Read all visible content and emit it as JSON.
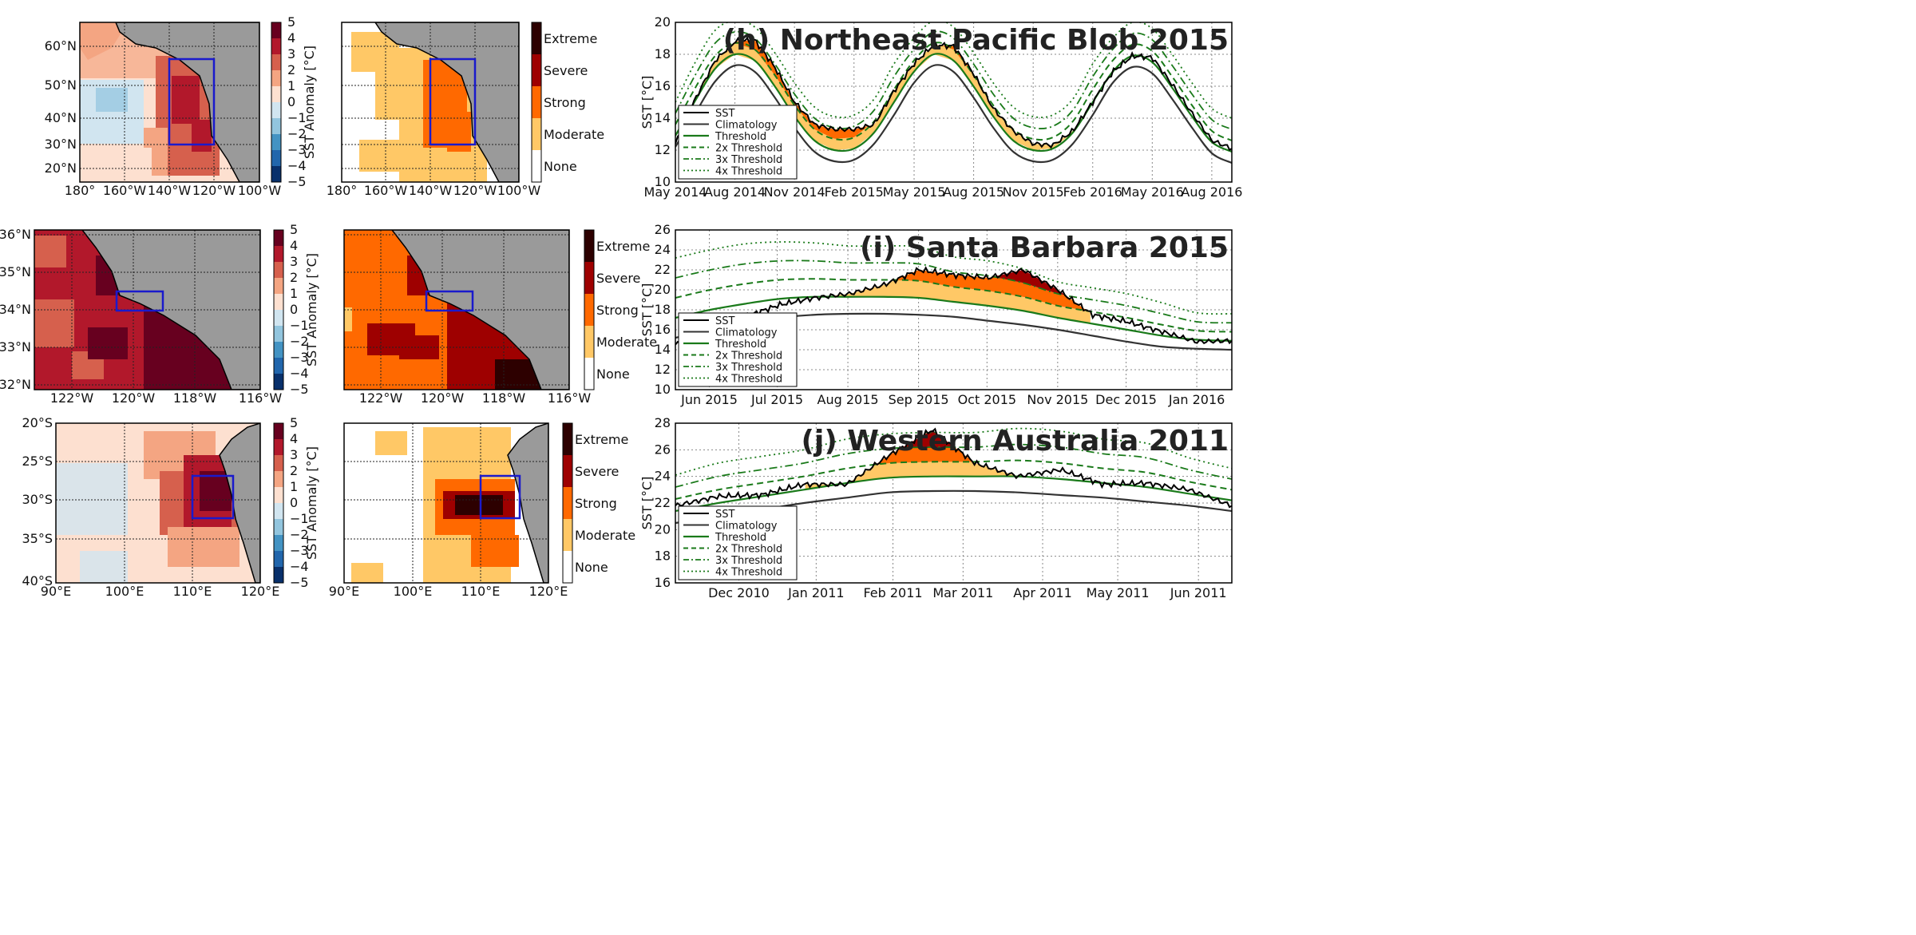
{
  "colors": {
    "land": "#9a9a9a",
    "box": "#1a1acc",
    "anomaly_scale": [
      "#08306b",
      "#2166ac",
      "#4393c3",
      "#92c5de",
      "#d1e5f0",
      "#fde0d0",
      "#f4a582",
      "#d6604d",
      "#b2182b",
      "#67001f"
    ],
    "category_scale": [
      "#ffffff",
      "#ffc866",
      "#ff6900",
      "#9e0000",
      "#2d0000"
    ],
    "climatology": "#333333",
    "sst": "#000000",
    "threshold": "#1a7a1a"
  },
  "maps": [
    {
      "region": "Northeast Pacific",
      "lat_ticks": [
        "60°N",
        "50°N",
        "40°N",
        "30°N",
        "20°N"
      ],
      "lon_ticks": [
        "180°",
        "160°W",
        "140°W",
        "120°W",
        "100°W"
      ],
      "colorbar_anomaly": {
        "label": "SST Anomaly [°C]",
        "ticks": [
          "5",
          "4",
          "3",
          "2",
          "1",
          "0",
          "−1",
          "−2",
          "−3",
          "−4",
          "−5"
        ]
      },
      "colorbar_category": {
        "labels": [
          "Extreme",
          "Severe",
          "Strong",
          "Moderate",
          "None"
        ]
      }
    },
    {
      "region": "Santa Barbara",
      "lat_ticks": [
        "36°N",
        "35°N",
        "34°N",
        "33°N",
        "32°N"
      ],
      "lon_ticks": [
        "122°W",
        "120°W",
        "118°W",
        "116°W"
      ],
      "colorbar_anomaly": {
        "label": "SST Anomaly [°C]",
        "ticks": [
          "5",
          "4",
          "3",
          "2",
          "1",
          "0",
          "−1",
          "−2",
          "−3",
          "−4",
          "−5"
        ]
      },
      "colorbar_category": {
        "labels": [
          "Extreme",
          "Severe",
          "Strong",
          "Moderate",
          "None"
        ]
      }
    },
    {
      "region": "Western Australia",
      "lat_ticks": [
        "20°S",
        "25°S",
        "30°S",
        "35°S",
        "40°S"
      ],
      "lon_ticks": [
        "90°E",
        "100°E",
        "110°E",
        "120°E"
      ],
      "colorbar_anomaly": {
        "label": "SST Anomaly [°C]",
        "ticks": [
          "5",
          "4",
          "3",
          "2",
          "1",
          "0",
          "−1",
          "−2",
          "−3",
          "−4",
          "−5"
        ]
      },
      "colorbar_category": {
        "labels": [
          "Extreme",
          "Severe",
          "Strong",
          "Moderate",
          "None"
        ]
      }
    }
  ],
  "chart_data": [
    {
      "type": "line",
      "title": "(h) Northeast Pacific Blob 2015",
      "ylabel": "SST [°C]",
      "ylim": [
        10,
        20
      ],
      "y_ticks": [
        "10",
        "12",
        "14",
        "16",
        "18",
        "20"
      ],
      "x_tick_labels": [
        "May 2014",
        "Aug 2014",
        "Nov 2014",
        "Feb 2015",
        "May 2015",
        "Aug 2015",
        "Nov 2015",
        "Feb 2016",
        "May 2016",
        "Aug 2016"
      ],
      "x_range_months": [
        0,
        28
      ],
      "grid": true,
      "legend": {
        "position": "lower-left",
        "entries": [
          "SST",
          "Climatology",
          "Threshold",
          "2x Threshold",
          "3x Threshold",
          "4x Threshold"
        ]
      },
      "series": {
        "x": [
          0,
          1,
          2,
          3,
          4,
          5,
          6,
          7,
          8,
          9,
          10,
          11,
          12,
          13,
          14,
          15,
          16,
          17,
          18,
          19,
          20,
          21,
          22,
          23,
          24,
          25,
          26,
          27,
          28
        ],
        "climatology": [
          12.2,
          14.3,
          16.3,
          17.3,
          16.9,
          15.3,
          13.4,
          11.9,
          11.3,
          11.4,
          12.4,
          14.2,
          16.2,
          17.3,
          16.9,
          15.3,
          13.4,
          11.9,
          11.3,
          11.4,
          12.4,
          14.2,
          16.2,
          17.2,
          16.8,
          15.2,
          13.4,
          11.8,
          11.2
        ],
        "threshold": [
          12.9,
          15.1,
          17.1,
          18.0,
          17.6,
          16.0,
          14.1,
          12.6,
          12.0,
          12.1,
          13.1,
          15.0,
          16.9,
          18.0,
          17.6,
          16.0,
          14.1,
          12.6,
          12.0,
          12.1,
          13.1,
          15.0,
          16.9,
          17.9,
          17.5,
          15.9,
          14.1,
          12.5,
          11.9
        ],
        "sst": [
          12.4,
          15.2,
          17.6,
          18.8,
          18.9,
          17.2,
          15.0,
          13.6,
          13.3,
          13.3,
          13.6,
          15.7,
          17.4,
          18.6,
          18.5,
          16.8,
          14.6,
          13.2,
          12.4,
          12.3,
          13.2,
          15.0,
          16.9,
          17.9,
          17.8,
          16.1,
          14.3,
          12.6,
          12.1
        ],
        "heatwave_mask": [
          false,
          true,
          true,
          true,
          true,
          true,
          true,
          true,
          true,
          true,
          true,
          true,
          true,
          true,
          true,
          true,
          true,
          true,
          true,
          true,
          true,
          false,
          false,
          false,
          false,
          false,
          false,
          false,
          false
        ],
        "x_format": "months since May 2014"
      }
    },
    {
      "type": "line",
      "title": "(i) Santa Barbara 2015",
      "ylabel": "SST [°C]",
      "ylim": [
        10,
        26
      ],
      "y_ticks": [
        "10",
        "12",
        "14",
        "16",
        "18",
        "20",
        "22",
        "24",
        "26"
      ],
      "x_tick_labels": [
        "Jun 2015",
        "Jul 2015",
        "Aug 2015",
        "Sep 2015",
        "Oct 2015",
        "Nov 2015",
        "Dec 2015",
        "Jan 2016"
      ],
      "grid": true,
      "legend": {
        "position": "lower-left",
        "entries": [
          "SST",
          "Climatology",
          "Threshold",
          "2x Threshold",
          "3x Threshold",
          "4x Threshold"
        ]
      },
      "series": {
        "x": [
          0,
          0.5,
          1,
          1.5,
          2,
          2.5,
          3,
          3.5,
          4,
          4.5,
          5,
          5.5,
          6,
          6.5,
          7,
          7.5,
          8
        ],
        "climatology": [
          15.2,
          16.0,
          16.6,
          17.2,
          17.5,
          17.6,
          17.6,
          17.5,
          17.3,
          16.9,
          16.5,
          16.0,
          15.4,
          14.8,
          14.3,
          14.1,
          14.0
        ],
        "threshold": [
          17.2,
          18.0,
          18.6,
          19.1,
          19.3,
          19.3,
          19.3,
          19.2,
          18.8,
          18.4,
          17.9,
          17.2,
          16.6,
          16.0,
          15.4,
          15.0,
          14.9
        ],
        "sst": [
          14.5,
          16.0,
          17.3,
          18.5,
          19.2,
          19.6,
          20.5,
          22.0,
          21.5,
          21.2,
          22.0,
          20.0,
          17.5,
          16.8,
          15.8,
          14.8,
          14.9
        ],
        "heatwave_mask": [
          false,
          false,
          false,
          false,
          false,
          true,
          true,
          true,
          true,
          true,
          true,
          true,
          false,
          false,
          false,
          false,
          false
        ],
        "x_format": "months since Jun 2015"
      }
    },
    {
      "type": "line",
      "title": "(j) Western Australia 2011",
      "ylabel": "SST [°C]",
      "ylim": [
        16,
        28
      ],
      "y_ticks": [
        "16",
        "18",
        "20",
        "22",
        "24",
        "26",
        "28"
      ],
      "x_tick_labels": [
        "Dec 2010",
        "Jan 2011",
        "Feb 2011",
        "Mar 2011",
        "Apr 2011",
        "May 2011",
        "Jun 2011"
      ],
      "grid": true,
      "legend": {
        "position": "lower-left",
        "entries": [
          "SST",
          "Climatology",
          "Threshold",
          "2x Threshold",
          "3x Threshold",
          "4x Threshold"
        ]
      },
      "series": {
        "x": [
          0,
          0.5,
          1,
          1.5,
          2,
          2.5,
          3,
          3.5,
          4,
          4.5,
          5,
          5.5,
          6,
          6.5
        ],
        "climatology": [
          20.5,
          21.0,
          21.5,
          22.0,
          22.4,
          22.8,
          22.9,
          22.9,
          22.8,
          22.6,
          22.4,
          22.1,
          21.8,
          21.4
        ],
        "threshold": [
          21.4,
          22.0,
          22.5,
          23.0,
          23.5,
          23.9,
          24.0,
          24.0,
          24.0,
          23.8,
          23.5,
          23.2,
          22.7,
          22.2
        ],
        "sst": [
          21.8,
          22.5,
          22.6,
          23.4,
          23.4,
          25.6,
          27.5,
          25.0,
          24.0,
          24.5,
          23.4,
          23.5,
          23.0,
          21.8
        ],
        "heatwave_mask": [
          false,
          false,
          false,
          false,
          true,
          true,
          true,
          true,
          false,
          false,
          false,
          false,
          false,
          false
        ],
        "x_format": "months since Dec 2010"
      }
    }
  ]
}
